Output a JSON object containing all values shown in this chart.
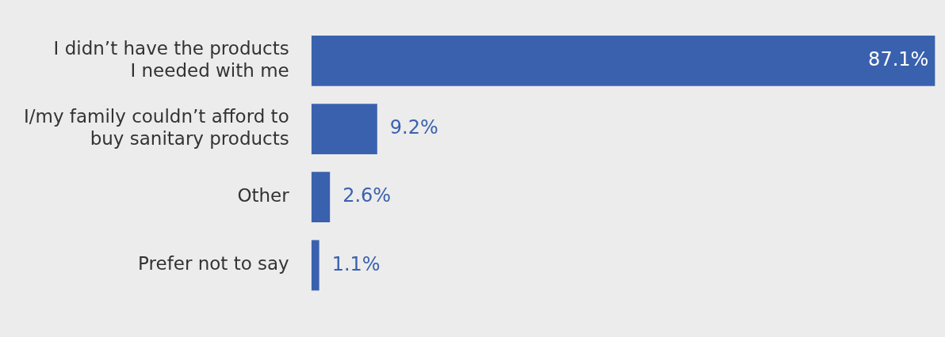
{
  "chart_data": {
    "type": "bar",
    "orientation": "horizontal",
    "categories": [
      "I didn’t have the products\nI needed with me",
      "I/my family couldn’t afford to\nbuy sanitary products",
      "Other",
      "Prefer not to say"
    ],
    "values": [
      87.1,
      9.2,
      2.6,
      1.1
    ],
    "value_labels": [
      "87.1%",
      "9.2%",
      "2.6%",
      "1.1%"
    ],
    "color": "#3a61ae",
    "xlim": [
      0,
      88.5
    ],
    "tick_labels": "y",
    "legend": false
  }
}
